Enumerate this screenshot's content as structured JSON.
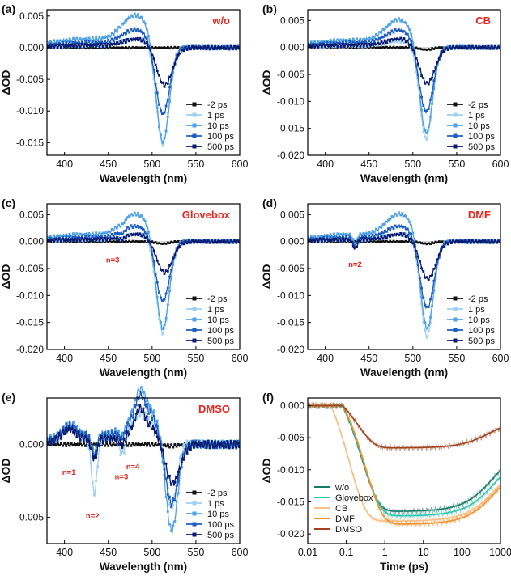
{
  "figure": "Transient absorption spectra and kinetics",
  "chart_data": [
    {
      "id": "a",
      "type": "line",
      "panel_label": "(a)",
      "title": "w/o",
      "xlabel": "Wavelength (nm)",
      "ylabel": "ΔOD",
      "xlim": [
        380,
        600
      ],
      "ylim": [
        -0.017,
        0.006
      ],
      "xticks": [
        400,
        450,
        500,
        550,
        600
      ],
      "yticks": [
        0.005,
        0.0,
        -0.005,
        -0.01,
        -0.015
      ],
      "ytick_labels": [
        "0.005",
        "0.000",
        "-0.005",
        "-0.010",
        "-0.015"
      ],
      "legend": [
        "-2 ps",
        "1 ps",
        "10 ps",
        "100 ps",
        "500 ps"
      ],
      "series_shape": [
        {
          "name": "-2 ps",
          "amp": 0.0,
          "center": 512,
          "width": 7,
          "pos_peak": 0.0
        },
        {
          "name": "1 ps",
          "amp": -0.0155,
          "center": 512,
          "width": 7,
          "pos_peak": 0.0012
        },
        {
          "name": "10 ps",
          "amp": -0.0158,
          "center": 512,
          "width": 7.5,
          "pos_peak": 0.0045
        },
        {
          "name": "100 ps",
          "amp": -0.011,
          "center": 512,
          "width": 8,
          "pos_peak": 0.0025
        },
        {
          "name": "500 ps",
          "amp": -0.0062,
          "center": 514,
          "width": 9,
          "pos_peak": 0.0012
        }
      ],
      "annotations": []
    },
    {
      "id": "b",
      "type": "line",
      "panel_label": "(b)",
      "title": "CB",
      "xlabel": "Wavelength (nm)",
      "ylabel": "ΔOD",
      "xlim": [
        380,
        600
      ],
      "ylim": [
        -0.02,
        0.007
      ],
      "xticks": [
        400,
        450,
        500,
        550,
        600
      ],
      "yticks": [
        0.005,
        0.0,
        -0.005,
        -0.01,
        -0.015,
        -0.02
      ],
      "ytick_labels": [
        "0.005",
        "0.000",
        "-0.005",
        "-0.010",
        "-0.015",
        "-0.020"
      ],
      "legend": [
        "-2 ps",
        "1 ps",
        "10 ps",
        "100 ps",
        "500 ps"
      ],
      "series_shape": [
        {
          "name": "-2 ps",
          "amp": -0.0004,
          "center": 515,
          "width": 7,
          "pos_peak": 0.0
        },
        {
          "name": "1 ps",
          "amp": -0.0172,
          "center": 515,
          "width": 7,
          "pos_peak": 0.001
        },
        {
          "name": "10 ps",
          "amp": -0.0168,
          "center": 515,
          "width": 7.5,
          "pos_peak": 0.0045
        },
        {
          "name": "100 ps",
          "amp": -0.0125,
          "center": 515,
          "width": 8,
          "pos_peak": 0.0028
        },
        {
          "name": "500 ps",
          "amp": -0.007,
          "center": 516,
          "width": 9,
          "pos_peak": 0.0014
        }
      ],
      "annotations": []
    },
    {
      "id": "c",
      "type": "line",
      "panel_label": "(c)",
      "title": "Glovebox",
      "xlabel": "Wavelength (nm)",
      "ylabel": "ΔOD",
      "xlim": [
        380,
        600
      ],
      "ylim": [
        -0.02,
        0.007
      ],
      "xticks": [
        400,
        450,
        500,
        550,
        600
      ],
      "yticks": [
        0.005,
        0.0,
        -0.005,
        -0.01,
        -0.015,
        -0.02
      ],
      "ytick_labels": [
        "0.005",
        "0.000",
        "-0.005",
        "-0.010",
        "-0.015",
        "-0.020"
      ],
      "legend": [
        "-2 ps",
        "1 ps",
        "10 ps",
        "100 ps",
        "500 ps"
      ],
      "series_shape": [
        {
          "name": "-2 ps",
          "amp": -0.0004,
          "center": 512,
          "width": 7,
          "pos_peak": 0.0
        },
        {
          "name": "1 ps",
          "amp": -0.0172,
          "center": 512,
          "width": 7,
          "pos_peak": 0.0012
        },
        {
          "name": "10 ps",
          "amp": -0.017,
          "center": 512,
          "width": 7.5,
          "pos_peak": 0.0045
        },
        {
          "name": "100 ps",
          "amp": -0.0115,
          "center": 512,
          "width": 8,
          "pos_peak": 0.0025
        },
        {
          "name": "500 ps",
          "amp": -0.006,
          "center": 514,
          "width": 9,
          "pos_peak": 0.0012
        }
      ],
      "annotations": [
        {
          "text": "n=3",
          "x": 455,
          "y": -0.0018
        }
      ]
    },
    {
      "id": "d",
      "type": "line",
      "panel_label": "(d)",
      "title": "DMF",
      "xlabel": "Wavelength (nm)",
      "ylabel": "ΔOD",
      "xlim": [
        380,
        600
      ],
      "ylim": [
        -0.02,
        0.007
      ],
      "xticks": [
        400,
        450,
        500,
        550,
        600
      ],
      "yticks": [
        0.005,
        0.0,
        -0.005,
        -0.01,
        -0.015,
        -0.02
      ],
      "ytick_labels": [
        "0.005",
        "0.000",
        "-0.005",
        "-0.010",
        "-0.015",
        "-0.020"
      ],
      "legend": [
        "-2 ps",
        "1 ps",
        "10 ps",
        "100 ps",
        "500 ps"
      ],
      "series_shape": [
        {
          "name": "-2 ps",
          "amp": -0.0004,
          "center": 516,
          "width": 7,
          "pos_peak": 0.0
        },
        {
          "name": "1 ps",
          "amp": -0.0178,
          "center": 516,
          "width": 7,
          "pos_peak": 0.0012
        },
        {
          "name": "10 ps",
          "amp": -0.017,
          "center": 516,
          "width": 7.5,
          "pos_peak": 0.0045
        },
        {
          "name": "100 ps",
          "amp": -0.0128,
          "center": 516,
          "width": 8,
          "pos_peak": 0.0025
        },
        {
          "name": "500 ps",
          "amp": -0.0072,
          "center": 517,
          "width": 9,
          "pos_peak": 0.0012
        }
      ],
      "annotations": [
        {
          "text": "n=2",
          "x": 434,
          "y": -0.0026
        }
      ]
    },
    {
      "id": "e",
      "type": "line",
      "panel_label": "(e)",
      "title": "DMSO",
      "xlabel": "Wavelength (nm)",
      "ylabel": "ΔOD",
      "xlim": [
        380,
        600
      ],
      "ylim": [
        -0.0068,
        0.0032
      ],
      "xticks": [
        400,
        450,
        500,
        550,
        600
      ],
      "yticks": [
        0.0,
        -0.005
      ],
      "ytick_labels": [
        "0.000",
        "-0.005"
      ],
      "legend": [
        "-2 ps",
        "1 ps",
        "10 ps",
        "100 ps",
        "500 ps"
      ],
      "series_shape": [
        {
          "name": "-2 ps",
          "amp": -0.0001,
          "center": 522,
          "width": 6,
          "pos_peak": 0.0
        },
        {
          "name": "1 ps",
          "amp": -0.0046,
          "center": 522,
          "width": 6,
          "pos_peak": 0.0015
        },
        {
          "name": "10 ps",
          "amp": -0.0064,
          "center": 522,
          "width": 7,
          "pos_peak": 0.0024
        },
        {
          "name": "100 ps",
          "amp": -0.0045,
          "center": 522,
          "width": 7.5,
          "pos_peak": 0.002
        },
        {
          "name": "500 ps",
          "amp": -0.0029,
          "center": 523,
          "width": 8.5,
          "pos_peak": 0.0012
        }
      ],
      "annotations": [
        {
          "text": "n=1",
          "x": 405,
          "y": -0.0013
        },
        {
          "text": "n=2",
          "x": 432,
          "y": -0.0043
        },
        {
          "text": "n=3",
          "x": 465,
          "y": -0.0016
        },
        {
          "text": "n=4",
          "x": 478,
          "y": -0.0009
        }
      ]
    },
    {
      "id": "f",
      "type": "line",
      "panel_label": "(f)",
      "title": "",
      "xlabel": "Time (ps)",
      "ylabel": "ΔOD",
      "xscale": "log",
      "xlim": [
        0.01,
        1000
      ],
      "ylim": [
        -0.0215,
        0.0012
      ],
      "xticks": [
        0.01,
        0.1,
        1,
        10,
        100,
        1000
      ],
      "xtick_labels": [
        "0.01",
        "0.1",
        "1",
        "10",
        "100",
        "1000"
      ],
      "yticks": [
        0.0,
        -0.005,
        -0.01,
        -0.015,
        -0.02
      ],
      "ytick_labels": [
        "0.000",
        "-0.005",
        "-0.010",
        "-0.015",
        "-0.020"
      ],
      "legend": [
        "w/o",
        "Glovebox",
        "CB",
        "DMF",
        "DMSO"
      ],
      "series": [
        {
          "name": "w/o",
          "color": "#1a7a6a",
          "t0": 0.08,
          "tr": 0.25,
          "min": -0.0165,
          "tau": 600,
          "rec": 0.0175
        },
        {
          "name": "Glovebox",
          "color": "#2ec4b0",
          "t0": 0.08,
          "tr": 0.28,
          "min": -0.0172,
          "tau": 650,
          "rec": 0.0172
        },
        {
          "name": "CB",
          "color": "#f5c08a",
          "t0": 0.04,
          "tr": 0.12,
          "min": -0.018,
          "tau": 700,
          "rec": 0.0168
        },
        {
          "name": "DMF",
          "color": "#f0922e",
          "t0": 0.08,
          "tr": 0.32,
          "min": -0.0185,
          "tau": 700,
          "rec": 0.017
        },
        {
          "name": "DMSO",
          "color": "#a0421e",
          "t0": 0.08,
          "tr": 0.2,
          "min": -0.0066,
          "tau": 500,
          "rec": 0.008
        }
      ]
    }
  ],
  "colors": {
    "series": [
      "#111111",
      "#9fd0f2",
      "#4fa2e6",
      "#1d5ebf",
      "#0b1a6e"
    ],
    "title": "#e8251f",
    "annotation": "#e8251f"
  }
}
